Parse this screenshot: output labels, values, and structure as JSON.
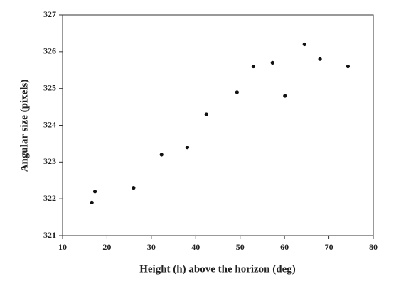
{
  "chart_data": {
    "type": "scatter",
    "xlabel": "Height (h) above the horizon (deg)",
    "ylabel": "Angular size (pixels)",
    "x": [
      16.6,
      17.3,
      26.0,
      32.3,
      38.1,
      42.4,
      49.3,
      53.0,
      57.3,
      60.1,
      64.5,
      68.0,
      74.3
    ],
    "values": [
      321.9,
      322.2,
      322.3,
      323.2,
      323.4,
      324.3,
      324.9,
      325.6,
      325.7,
      324.8,
      326.2,
      325.8,
      325.6
    ],
    "color": "#111111",
    "xlim": [
      10,
      80
    ],
    "xticks": [
      10,
      20,
      30,
      40,
      50,
      60,
      70,
      80
    ],
    "ylim": [
      321,
      327
    ],
    "yticks": [
      321,
      322,
      323,
      324,
      325,
      326,
      327
    ],
    "grid": false
  }
}
